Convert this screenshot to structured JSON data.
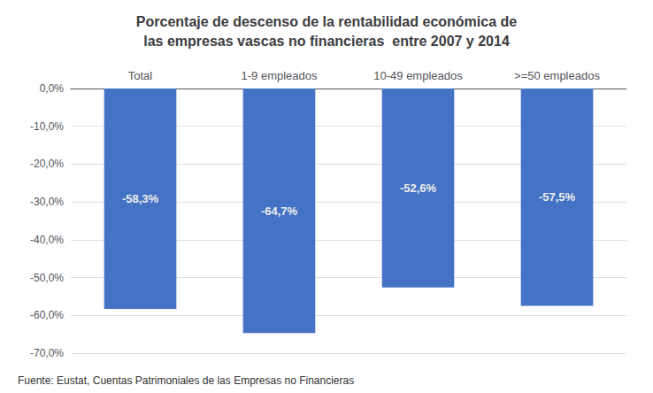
{
  "chart_data": {
    "type": "bar",
    "title": "Porcentaje de descenso de la rentabilidad económica de\nlas empresas vascas no financieras  entre 2007 y 2014",
    "categories": [
      "Total",
      "1-9 empleados",
      "10-49 empleados",
      ">=50 empleados"
    ],
    "values": [
      -58.3,
      -64.7,
      -52.6,
      -57.5
    ],
    "value_labels": [
      "-58,3%",
      "-64,7%",
      "-52,6%",
      "-57,5%"
    ],
    "data_labels": true,
    "color": "#4472C4",
    "ylim": [
      -70,
      0
    ],
    "yticks": [
      {
        "value": 0,
        "label": "0,0%"
      },
      {
        "value": -10,
        "label": "-10,0%"
      },
      {
        "value": -20,
        "label": "-20,0%"
      },
      {
        "value": -30,
        "label": "-30,0%"
      },
      {
        "value": -40,
        "label": "-40,0%"
      },
      {
        "value": -50,
        "label": "-50,0%"
      },
      {
        "value": -60,
        "label": "-60,0%"
      },
      {
        "value": -70,
        "label": "-70,0%"
      }
    ],
    "grid": true,
    "annotations": [
      "Fuente: Eustat, Cuentas Patrimoniales de las Empresas no Financieras"
    ]
  }
}
